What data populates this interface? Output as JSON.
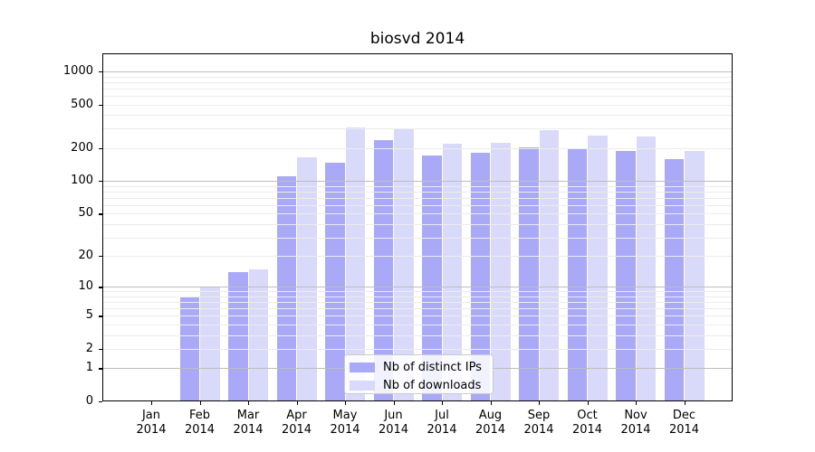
{
  "chart_data": {
    "type": "bar",
    "title": "biosvd 2014",
    "year": "2014",
    "months": [
      "Jan",
      "Feb",
      "Mar",
      "Apr",
      "May",
      "Jun",
      "Jul",
      "Aug",
      "Sep",
      "Oct",
      "Nov",
      "Dec"
    ],
    "series": [
      {
        "name": "Nb of distinct IPs",
        "color": "#a9a9f8",
        "values": [
          0,
          8,
          14,
          110,
          148,
          235,
          170,
          180,
          205,
          195,
          190,
          160
        ]
      },
      {
        "name": "Nb of downloads",
        "color": "#d9d9fa",
        "values": [
          0,
          10,
          15,
          165,
          310,
          300,
          220,
          225,
          290,
          260,
          255,
          190
        ]
      }
    ],
    "yscale": "log1p",
    "y_tick_values": [
      0,
      1,
      2,
      5,
      10,
      20,
      50,
      100,
      200,
      500,
      1000
    ],
    "ylim": [
      0,
      1450
    ],
    "grid": true,
    "legend_position": "lower center",
    "xlabel": "",
    "ylabel": ""
  },
  "colors": {
    "background": "#ffffff",
    "axis": "#000000",
    "major_grid": "#bdbdbd",
    "minor_grid": "#ececec",
    "legend_border": "#cccccc"
  }
}
